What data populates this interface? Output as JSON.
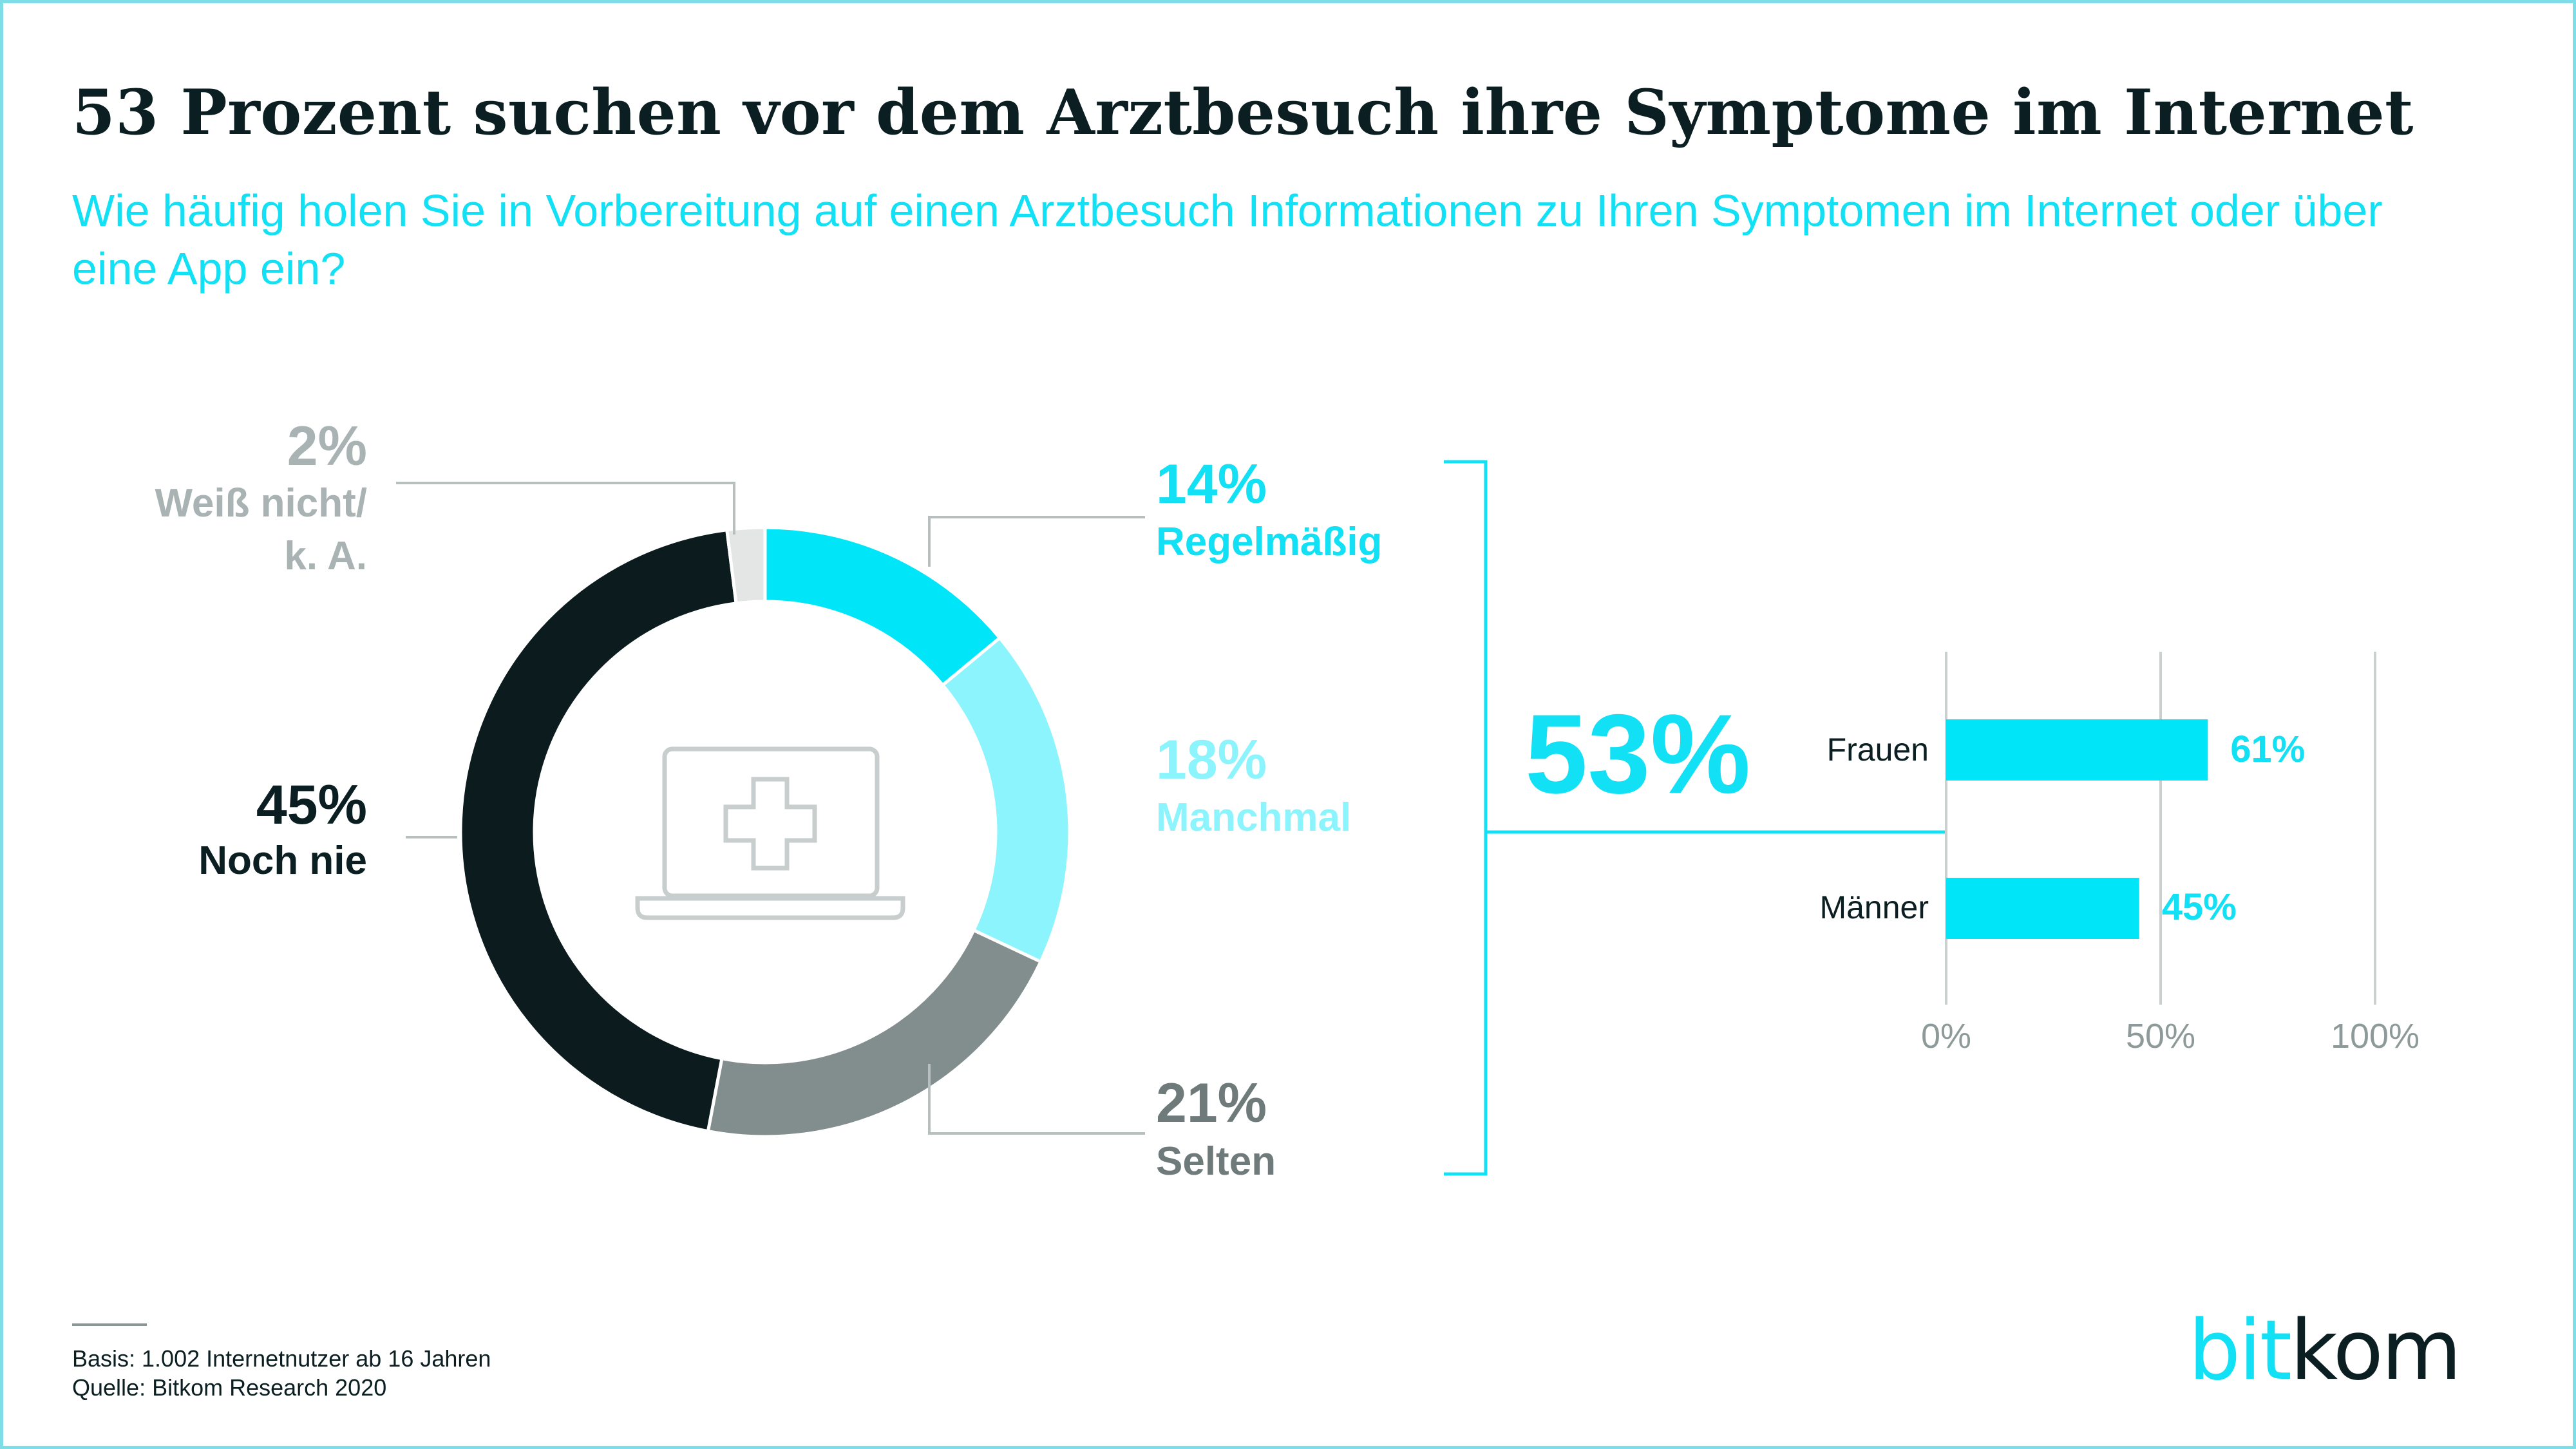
{
  "title": "53 Prozent suchen vor dem Arztbesuch ihre Symptome im Internet",
  "subtitle": "Wie häufig holen Sie in Vorbereitung auf einen Arztbesuch Informationen zu Ihren Symptomen im Internet oder über eine App ein?",
  "colors": {
    "accent": "#12e1f5",
    "regelmaessig": "#00e6f8",
    "manchmal": "#8bf4fd",
    "selten": "#828e8d",
    "noch_nie": "#0b1b1e",
    "weiss_nicht": "#e3e6e5",
    "weiss_nicht_text": "#a9b3b3"
  },
  "icon": "laptop-medical-cross-icon",
  "chart_data": [
    {
      "type": "pie",
      "slices": [
        {
          "label_line1": "Regelmäßig",
          "label_line2": "",
          "value": 14,
          "display": "14%"
        },
        {
          "label_line1": "Manchmal",
          "label_line2": "",
          "value": 18,
          "display": "18%"
        },
        {
          "label_line1": "Selten",
          "label_line2": "",
          "value": 21,
          "display": "21%"
        },
        {
          "label_line1": "Noch nie",
          "label_line2": "",
          "value": 45,
          "display": "45%"
        },
        {
          "label_line1": "Weiß nicht/",
          "label_line2": "k. A.",
          "value": 2,
          "display": "2%"
        }
      ],
      "total_bracket_value": "53%"
    },
    {
      "type": "bar",
      "orientation": "horizontal",
      "categories": [
        "Frauen",
        "Männer"
      ],
      "values": [
        61,
        45
      ],
      "value_labels": [
        "61%",
        "45%"
      ],
      "xlim": [
        0,
        100
      ],
      "x_ticks": [
        0,
        50,
        100
      ],
      "x_tick_labels": [
        "0%",
        "50%",
        "100%"
      ],
      "grid": true
    }
  ],
  "footer": {
    "basis": "Basis: 1.002 Internetnutzer ab 16 Jahren",
    "quelle": "Quelle: Bitkom Research 2020"
  },
  "logo": {
    "part1": "bit",
    "part2": "kom"
  }
}
